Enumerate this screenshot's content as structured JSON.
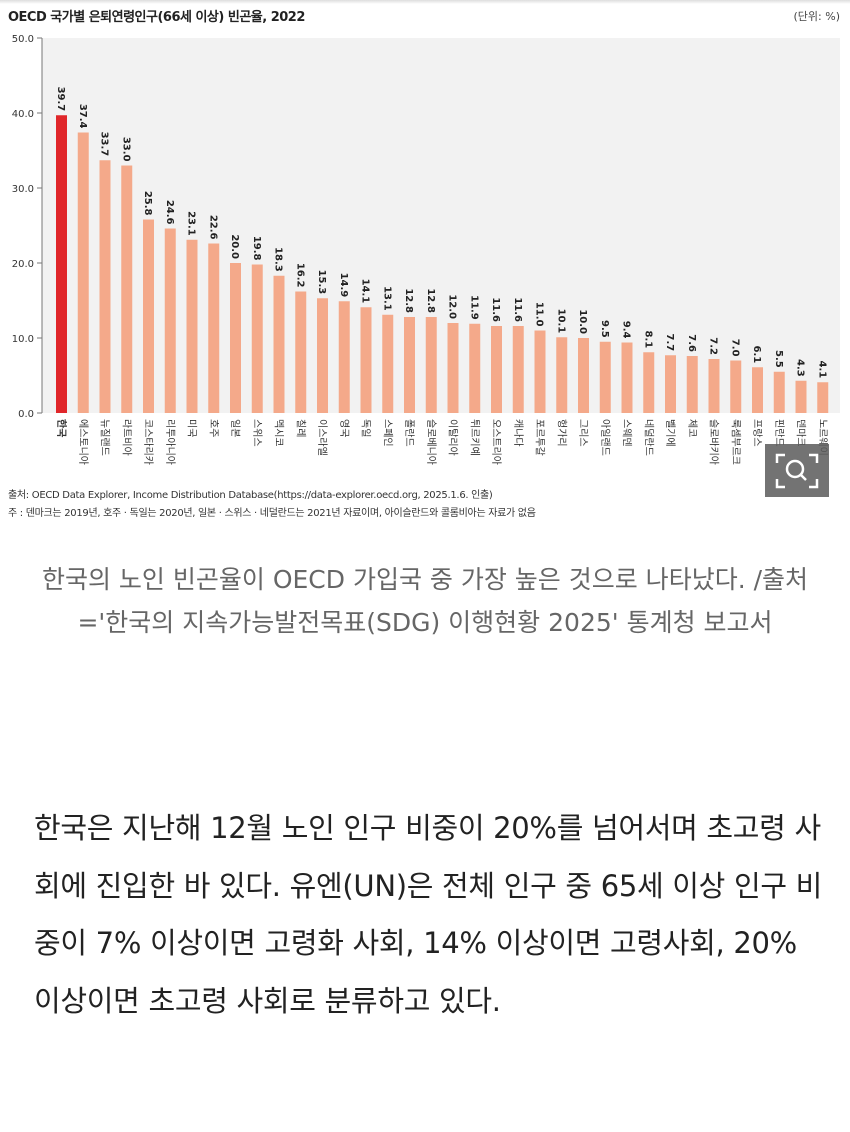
{
  "chart_data": {
    "type": "bar",
    "title": "OECD 국가별 은퇴연령인구(66세 이상) 빈곤율, 2022",
    "unit": "(단위: %)",
    "categories": [
      "한국",
      "에스토니아",
      "뉴질랜드",
      "라트비아",
      "코스타리카",
      "리투아니아",
      "미국",
      "호주",
      "일본",
      "스위스",
      "멕시코",
      "칠레",
      "이스라엘",
      "영국",
      "독일",
      "스페인",
      "폴란드",
      "슬로베니아",
      "이탈리아",
      "튀르키예",
      "오스트리아",
      "캐나다",
      "포르투갈",
      "헝가리",
      "그리스",
      "아일랜드",
      "스웨덴",
      "네덜란드",
      "벨기에",
      "체코",
      "슬로바키아",
      "룩셈부르크",
      "프랑스",
      "핀란드",
      "덴마크",
      "노르웨이"
    ],
    "values": [
      39.7,
      37.4,
      33.7,
      33.0,
      25.8,
      24.6,
      23.1,
      22.6,
      20.0,
      19.8,
      18.3,
      16.2,
      15.3,
      14.9,
      14.1,
      13.1,
      12.8,
      12.8,
      12.0,
      11.9,
      11.6,
      11.6,
      11.0,
      10.1,
      10.0,
      9.5,
      9.4,
      8.1,
      7.7,
      7.6,
      7.2,
      7.0,
      6.1,
      5.5,
      4.3,
      4.1
    ],
    "ylim": [
      0,
      50
    ],
    "yticks": [
      "0.0",
      "10.0",
      "20.0",
      "30.0",
      "40.0",
      "50.0"
    ],
    "highlight_category": "한국",
    "colors": {
      "highlight": "#e0262a",
      "bar": "#f4a98a",
      "background": "#f2f2f2"
    },
    "grid": false
  },
  "source": "출처: OECD Data Explorer, Income Distribution Database(https://data-explorer.oecd.org, 2025.1.6. 인출)",
  "note": "주   : 덴마크는 2019년, 호주 · 독일는 2020년, 일본 · 스위스 · 네덜란드는 2021년 자료이며, 아이슬란드와 콜롬비아는 자료가 없음",
  "zoom_icon": "magnifier-icon",
  "caption": "한국의 노인 빈곤율이 OECD 가입국 중 가장 높은 것으로 나타났다. /출처='한국의 지속가능발전목표(SDG) 이행현황 2025' 통계청 보고서",
  "body": "한국은 지난해 12월 노인 인구 비중이 20%를 넘어서며 초고령 사회에 진입한 바 있다. 유엔(UN)은 전체 인구 중 65세 이상 인구 비중이 7% 이상이면 고령화 사회, 14% 이상이면 고령사회, 20% 이상이면 초고령 사회로 분류하고 있다."
}
